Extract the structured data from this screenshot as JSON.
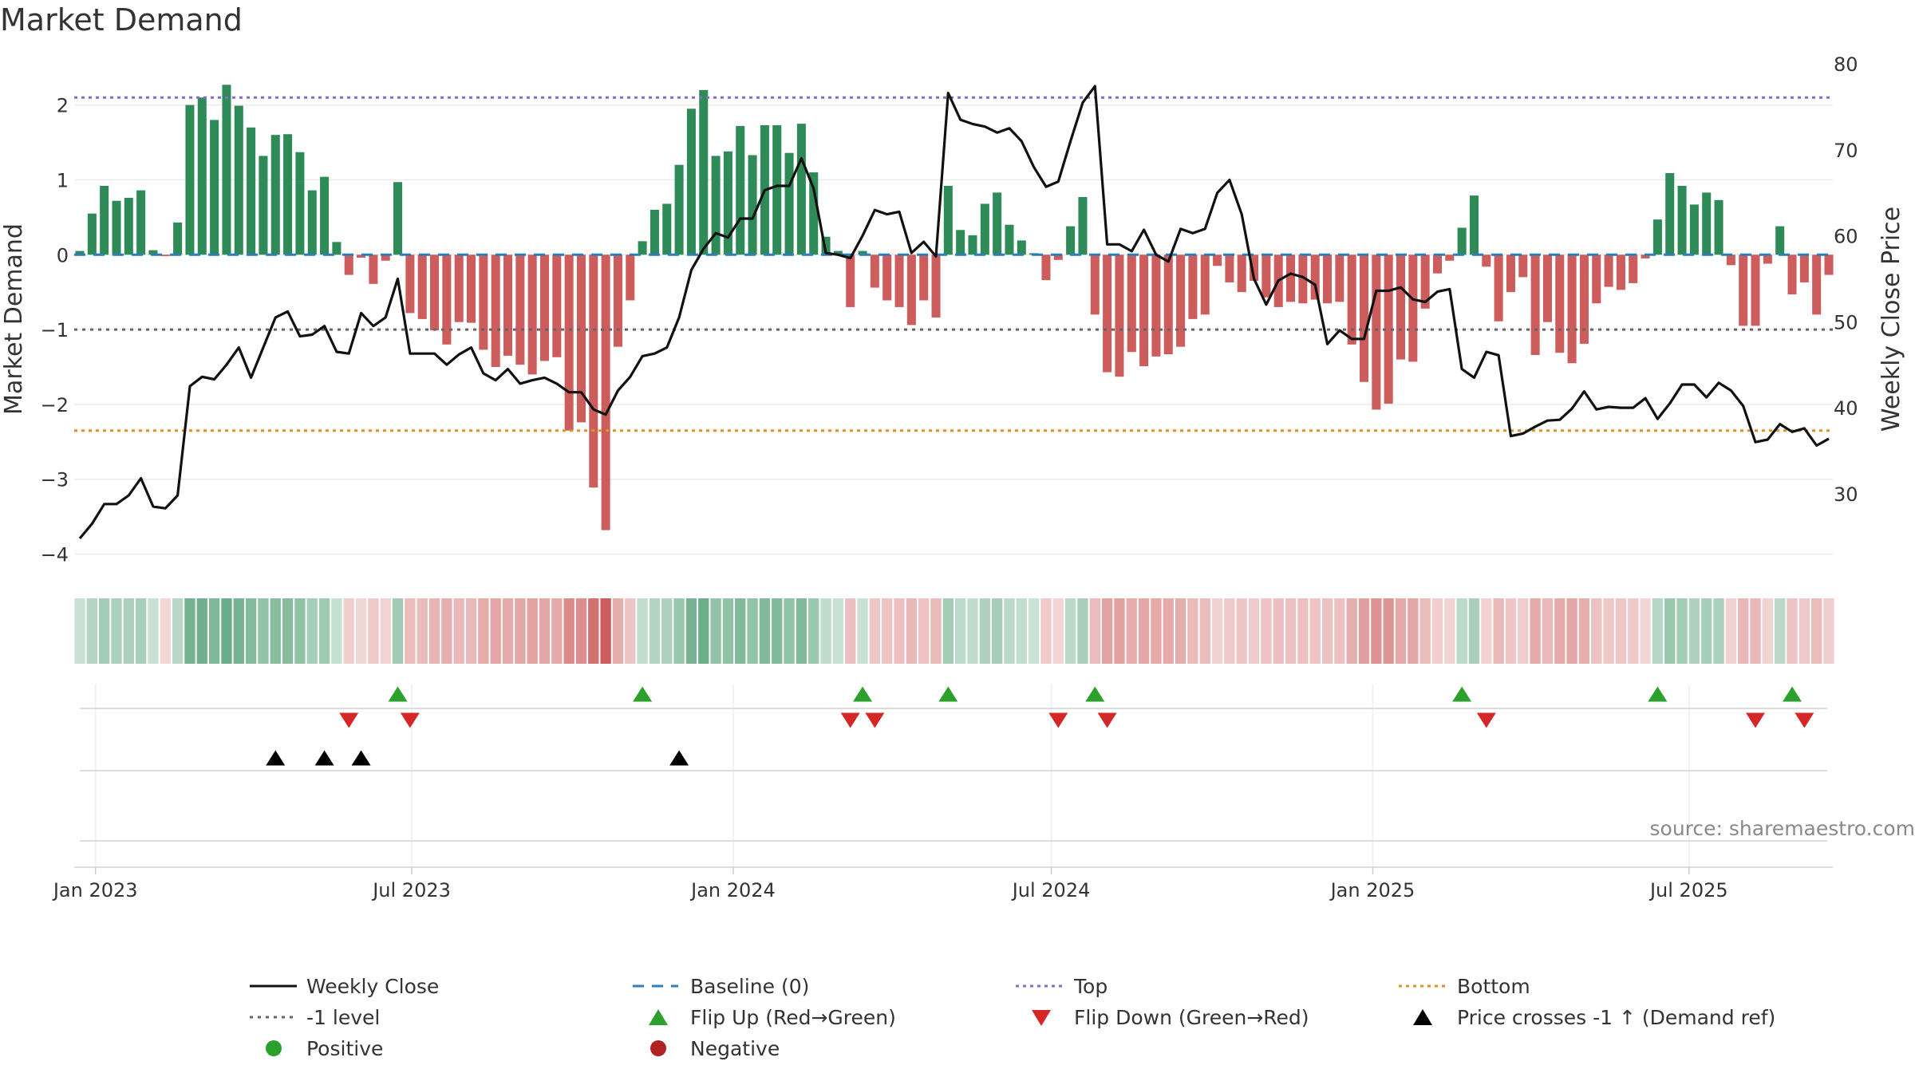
{
  "chart_data": {
    "type": "bar",
    "title": "Market Demand",
    "ylabel": "Market Demand",
    "y2label": "Weekly Close Price",
    "ylim": [
      -4.25,
      2.55
    ],
    "y2lim": [
      20.8,
      80
    ],
    "yticks": [
      2,
      1,
      0,
      -1,
      -2,
      -3,
      -4
    ],
    "ytick_labels": [
      "2",
      "1",
      "0",
      "−1",
      "−2",
      "−3",
      "−4"
    ],
    "y2ticks": [
      80,
      70,
      60,
      50,
      40,
      30
    ],
    "y2tick_labels": [
      "80",
      "70",
      "60",
      "50",
      "40",
      "30"
    ],
    "x_start": "2022-12-23",
    "x_interval_days": 7,
    "xticks": [
      {
        "date": "2023-01-01",
        "label": "Jan 2023"
      },
      {
        "date": "2023-07-01",
        "label": "Jul 2023"
      },
      {
        "date": "2024-01-01",
        "label": "Jan 2024"
      },
      {
        "date": "2024-07-01",
        "label": "Jul 2024"
      },
      {
        "date": "2025-01-01",
        "label": "Jan 2025"
      },
      {
        "date": "2025-07-01",
        "label": "Jul 2025"
      }
    ],
    "reference_lines": {
      "baseline": 0,
      "top": 2.1,
      "minus_one": -1,
      "bottom": -2.35
    },
    "demand": [
      0.05,
      0.55,
      0.92,
      0.72,
      0.76,
      0.86,
      0.06,
      -0.02,
      0.43,
      2.0,
      2.1,
      1.8,
      2.27,
      1.99,
      1.7,
      1.32,
      1.6,
      1.61,
      1.37,
      0.86,
      1.04,
      0.17,
      -0.27,
      -0.04,
      -0.39,
      -0.08,
      0.97,
      -0.78,
      -0.86,
      -1.01,
      -1.2,
      -0.9,
      -0.91,
      -1.27,
      -1.5,
      -1.35,
      -1.47,
      -1.6,
      -1.42,
      -1.37,
      -2.35,
      -2.24,
      -3.11,
      -3.68,
      -1.23,
      -0.61,
      0.18,
      0.6,
      0.68,
      1.2,
      1.95,
      2.2,
      1.32,
      1.38,
      1.72,
      1.33,
      1.73,
      1.73,
      1.36,
      1.75,
      1.1,
      0.24,
      0.05,
      -0.7,
      0.05,
      -0.44,
      -0.61,
      -0.7,
      -0.94,
      -0.61,
      -0.84,
      0.92,
      0.33,
      0.26,
      0.68,
      0.83,
      0.4,
      0.19,
      0.02,
      -0.34,
      -0.07,
      0.38,
      0.77,
      -0.8,
      -1.57,
      -1.63,
      -1.3,
      -1.49,
      -1.36,
      -1.33,
      -1.23,
      -0.86,
      -0.8,
      -0.15,
      -0.37,
      -0.5,
      -0.35,
      -0.57,
      -0.7,
      -0.63,
      -0.65,
      -0.6,
      -0.65,
      -0.63,
      -1.2,
      -1.7,
      -2.07,
      -1.99,
      -1.4,
      -1.43,
      -0.72,
      -0.25,
      -0.08,
      0.36,
      0.79,
      -0.16,
      -0.89,
      -0.5,
      -0.3,
      -1.34,
      -0.9,
      -1.31,
      -1.45,
      -1.19,
      -0.65,
      -0.43,
      -0.47,
      -0.38,
      -0.05,
      0.47,
      1.09,
      0.92,
      0.67,
      0.83,
      0.73,
      -0.14,
      -0.95,
      -0.95,
      -0.12,
      0.38,
      -0.53,
      -0.37,
      -0.8,
      -0.27
    ],
    "weekly_close": [
      24.8,
      26.5,
      28.8,
      28.8,
      29.8,
      31.8,
      28.5,
      28.3,
      29.8,
      42.5,
      43.6,
      43.3,
      45.0,
      47.0,
      43.5,
      47.0,
      50.5,
      51.2,
      48.3,
      48.5,
      49.5,
      46.5,
      46.3,
      51.0,
      49.5,
      50.5,
      55.0,
      46.3,
      46.3,
      46.3,
      45.0,
      46.2,
      47.0,
      44.0,
      43.2,
      44.5,
      42.8,
      43.2,
      43.5,
      42.8,
      41.8,
      41.8,
      39.8,
      39.2,
      42.0,
      43.6,
      46.0,
      46.3,
      47.0,
      50.5,
      56.0,
      58.5,
      60.3,
      59.8,
      62.0,
      62.0,
      65.3,
      65.8,
      65.8,
      69.0,
      65.5,
      58.0,
      57.8,
      57.4,
      60.0,
      63.0,
      62.5,
      62.8,
      58.0,
      59.3,
      57.6,
      76.6,
      73.5,
      73.0,
      72.7,
      72.0,
      72.5,
      71.0,
      68.0,
      65.7,
      66.3,
      71.0,
      75.5,
      77.4,
      59.0,
      59.0,
      58.2,
      60.7,
      57.8,
      57.0,
      60.8,
      60.3,
      60.8,
      65.0,
      66.5,
      62.5,
      55.0,
      52.0,
      54.8,
      55.6,
      55.2,
      54.3,
      47.4,
      49.0,
      48.0,
      48.0,
      53.6,
      53.6,
      54.0,
      52.6,
      52.3,
      53.5,
      53.8,
      44.5,
      43.5,
      46.5,
      46.1,
      36.7,
      37.0,
      37.8,
      38.5,
      38.6,
      39.9,
      41.9,
      39.8,
      40.1,
      40.0,
      40.0,
      41.1,
      38.7,
      40.5,
      42.7,
      42.7,
      41.2,
      42.9,
      42.0,
      40.2,
      36.0,
      36.3,
      38.1,
      37.2,
      37.6,
      35.6,
      36.4
    ]
  },
  "source_text": "source: sharemaestro.com",
  "marker_rows": {
    "flip_up_weeks": [
      26,
      46,
      64,
      71,
      83,
      113,
      129,
      140
    ],
    "flip_down_weeks": [
      22,
      27,
      63,
      65,
      80,
      84,
      115,
      137,
      141
    ],
    "price_crosses_weeks": [
      16,
      20,
      23,
      49
    ]
  },
  "legend": {
    "weekly_close": "Weekly Close",
    "baseline": "Baseline (0)",
    "top": "Top",
    "bottom": "Bottom",
    "minus_one": "-1 level",
    "flip_up": "Flip Up (Red→Green)",
    "flip_down": "Flip Down (Green→Red)",
    "price_crosses": "Price crosses -1 ↑ (Demand ref)",
    "positive": "Positive",
    "negative": "Negative"
  },
  "colors": {
    "positive": "#2e8b57",
    "negative": "#cd5c5c",
    "line": "#111111",
    "baseline": "#2a7fb8",
    "top": "#7b6fd0",
    "minus_one": "#666666",
    "bottom": "#e0922a",
    "flip_up": "#2ca02c",
    "flip_down": "#d62728",
    "price_cross": "#000000",
    "legend_positive_dot": "#2ca02c",
    "legend_negative_dot": "#b22222"
  }
}
